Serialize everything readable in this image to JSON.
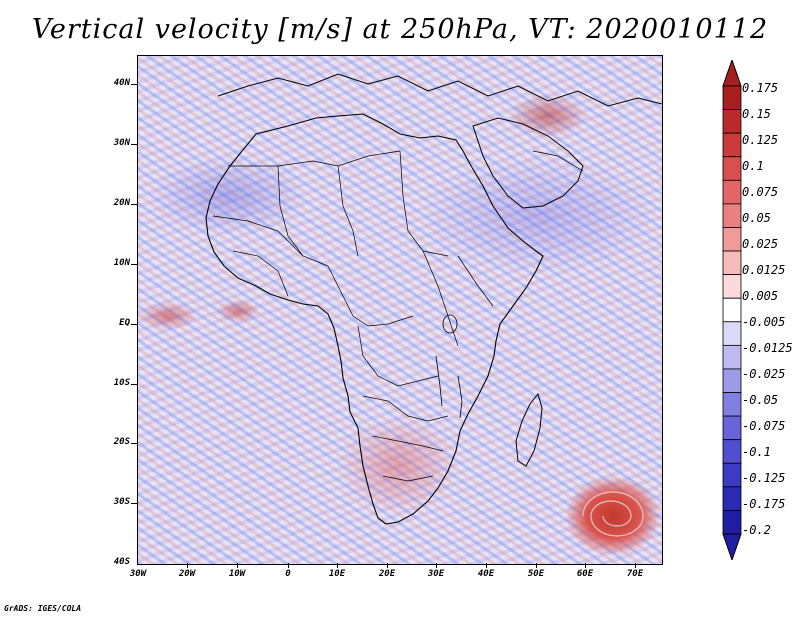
{
  "title": "Vertical velocity [m/s] at 250hPa, VT: 2020010112",
  "map": {
    "region": "Africa and surrounding oceans",
    "field": "Vertical velocity",
    "units": "m/s",
    "level": "250hPa",
    "valid_time": "2020010112",
    "lat_labels": [
      "40N",
      "30N",
      "20N",
      "10N",
      "EQ",
      "10S",
      "20S",
      "30S",
      "40S"
    ],
    "lon_labels": [
      "30W",
      "20W",
      "10W",
      "0",
      "10E",
      "20E",
      "30E",
      "40E",
      "50E",
      "60E",
      "70E"
    ]
  },
  "colorbar": {
    "levels": [
      "0.175",
      "0.15",
      "0.125",
      "0.1",
      "0.075",
      "0.05",
      "0.025",
      "0.0125",
      "0.005",
      "-0.005",
      "-0.0125",
      "-0.025",
      "-0.05",
      "-0.075",
      "-0.1",
      "-0.125",
      "-0.175",
      "-0.2"
    ],
    "colors": [
      "#a61e1e",
      "#bb2a2a",
      "#cc3b3b",
      "#d94f4f",
      "#e36666",
      "#ea8080",
      "#f09b9b",
      "#f6bcbc",
      "#fadada",
      "#ffffff",
      "#dadaf8",
      "#bcbcf2",
      "#9b9bea",
      "#8080e2",
      "#6666da",
      "#4f4fd0",
      "#3b3bc4",
      "#2a2ab5",
      "#1e1ea3"
    ]
  },
  "footer": "GrADS: IGES/COLA"
}
